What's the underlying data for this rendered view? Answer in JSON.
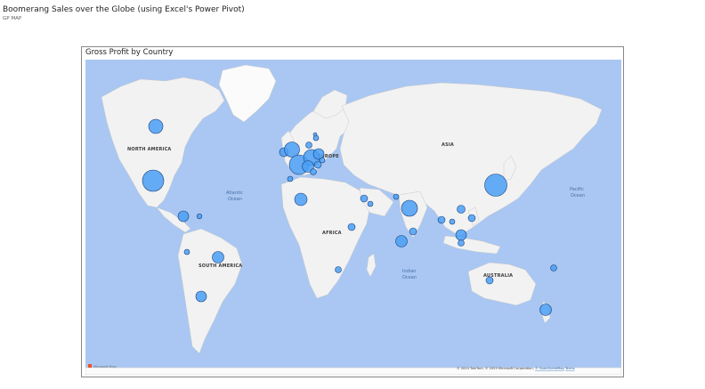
{
  "page": {
    "title": "Boomerang Sales over the Globe (using Excel's Power Pivot)",
    "subtitle": "GP MAP"
  },
  "visual": {
    "title": "Gross Profit by Country"
  },
  "map": {
    "continent_labels": {
      "north_america": "NORTH AMERICA",
      "south_america": "SOUTH AMERICA",
      "europe": "EUROPE",
      "asia": "ASIA",
      "africa": "AFRICA",
      "australia": "AUSTRALIA"
    },
    "ocean_labels": {
      "atlantic_1": "Atlantic",
      "atlantic_2": "Ocean",
      "pacific_1": "Pacific",
      "pacific_2": "Ocean",
      "indian_1": "Indian",
      "indian_2": "Ocean"
    },
    "brand": "Microsoft Bing",
    "attribution": {
      "text": "© 2024 TomTom, © 2025 Microsoft Corporation,",
      "osm": "© OpenStreetMap",
      "terms": "Terms"
    },
    "colors": {
      "ocean": "#a9c7f2",
      "land": "#f2f2f2",
      "ice": "#fbfbfb",
      "bubble": "#4a9ff5",
      "bubble_stroke": "#1a3f7a"
    },
    "bubble_icon": "circle-bubble"
  }
}
